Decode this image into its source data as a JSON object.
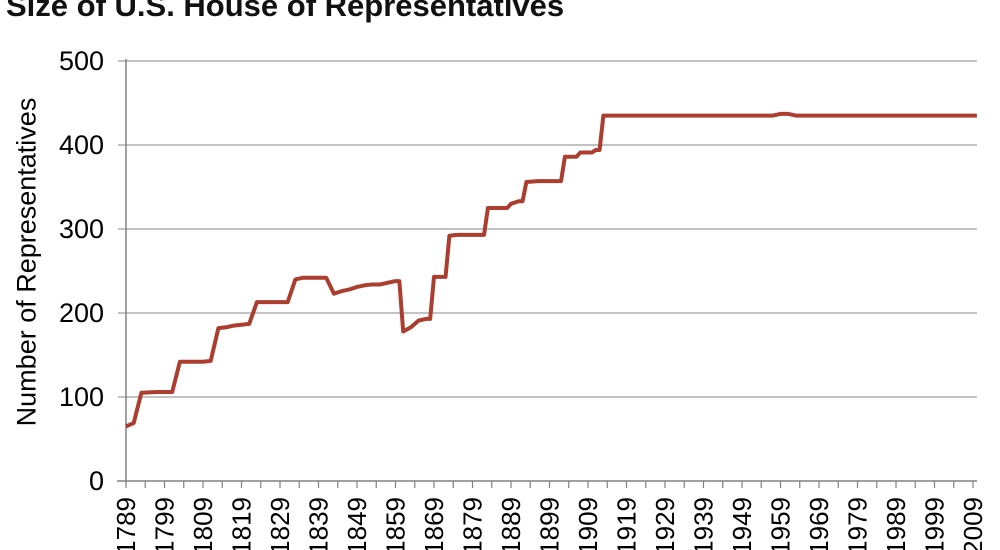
{
  "chart_data": {
    "type": "line",
    "title": "Size of U.S. House of Representatives",
    "xlabel": "",
    "ylabel": "Number of Representatives",
    "xlim": [
      1789,
      2010
    ],
    "ylim": [
      0,
      500
    ],
    "grid": "horizontal-gridlines-on",
    "legend": "none",
    "y_ticks": [
      0,
      100,
      200,
      300,
      400,
      500
    ],
    "x_tick_labels": [
      "1789",
      "1799",
      "1809",
      "1819",
      "1829",
      "1839",
      "1849",
      "1859",
      "1869",
      "1879",
      "1889",
      "1899",
      "1909",
      "1919",
      "1929",
      "1939",
      "1949",
      "1959",
      "1969",
      "1979",
      "1989",
      "1999",
      "2009"
    ],
    "x_minor_tick_interval_years": 5,
    "series": [
      {
        "name": "Number of Representatives",
        "points": [
          [
            1789,
            65
          ],
          [
            1791,
            69
          ],
          [
            1793,
            105
          ],
          [
            1797,
            106
          ],
          [
            1801,
            106
          ],
          [
            1803,
            142
          ],
          [
            1809,
            142
          ],
          [
            1811,
            143
          ],
          [
            1813,
            182
          ],
          [
            1815,
            183
          ],
          [
            1817,
            185
          ],
          [
            1819,
            186
          ],
          [
            1821,
            187
          ],
          [
            1823,
            213
          ],
          [
            1831,
            213
          ],
          [
            1833,
            240
          ],
          [
            1835,
            242
          ],
          [
            1841,
            242
          ],
          [
            1843,
            223
          ],
          [
            1845,
            226
          ],
          [
            1847,
            228
          ],
          [
            1849,
            231
          ],
          [
            1851,
            233
          ],
          [
            1853,
            234
          ],
          [
            1855,
            234
          ],
          [
            1857,
            236
          ],
          [
            1859,
            238
          ],
          [
            1860,
            238
          ],
          [
            1861,
            178
          ],
          [
            1863,
            183
          ],
          [
            1865,
            191
          ],
          [
            1867,
            193
          ],
          [
            1868,
            193
          ],
          [
            1869,
            243
          ],
          [
            1872,
            243
          ],
          [
            1873,
            292
          ],
          [
            1875,
            293
          ],
          [
            1882,
            293
          ],
          [
            1883,
            325
          ],
          [
            1888,
            325
          ],
          [
            1889,
            330
          ],
          [
            1891,
            333
          ],
          [
            1892,
            333
          ],
          [
            1893,
            356
          ],
          [
            1896,
            357
          ],
          [
            1902,
            357
          ],
          [
            1903,
            386
          ],
          [
            1906,
            386
          ],
          [
            1907,
            391
          ],
          [
            1910,
            391
          ],
          [
            1911,
            394
          ],
          [
            1912,
            394
          ],
          [
            1913,
            435
          ],
          [
            1957,
            435
          ],
          [
            1959,
            437
          ],
          [
            1961,
            437
          ],
          [
            1963,
            435
          ],
          [
            2010,
            435
          ]
        ]
      }
    ],
    "colors": {
      "line": "#AC3E30",
      "gridline": "#AFAFAF",
      "axis": "#808080",
      "text": "#000000",
      "background": "#FFFFFF"
    }
  }
}
